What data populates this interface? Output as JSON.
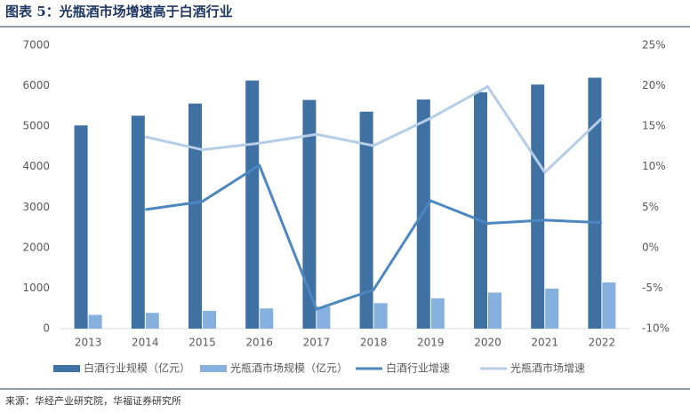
{
  "chart_data": {
    "type": "bar",
    "title": "图表 5：光瓶酒市场增速高于白酒行业",
    "source": "来源：华经产业研究院，华福证券研究所",
    "categories": [
      "2013",
      "2014",
      "2015",
      "2016",
      "2017",
      "2018",
      "2019",
      "2020",
      "2021",
      "2022"
    ],
    "series": [
      {
        "name": "白酒行业规模（亿元）",
        "type": "bar",
        "color": "#3f71a3",
        "values": [
          5020,
          5260,
          5560,
          6130,
          5650,
          5360,
          5660,
          5840,
          6030,
          6200
        ]
      },
      {
        "name": "光瓶酒市场规模（亿元）",
        "type": "bar",
        "color": "#86b0dd",
        "values": [
          340,
          390,
          440,
          500,
          540,
          630,
          750,
          890,
          990,
          1140
        ]
      },
      {
        "name": "白酒行业增速",
        "type": "line",
        "axis": "y2",
        "color": "#4c87c2",
        "values": [
          null,
          4.7,
          5.7,
          10.2,
          -7.6,
          -5.2,
          5.8,
          3.0,
          3.4,
          3.1
        ]
      },
      {
        "name": "光瓶酒市场增速",
        "type": "line",
        "axis": "y2",
        "color": "#b6cde8",
        "values": [
          null,
          13.7,
          12.1,
          12.9,
          14.0,
          12.6,
          16.0,
          19.9,
          9.3,
          16.0
        ]
      }
    ],
    "ylim": [
      0,
      7000
    ],
    "yticks": [
      0,
      1000,
      2000,
      3000,
      4000,
      5000,
      6000,
      7000
    ],
    "y2lim": [
      -10,
      25
    ],
    "y2ticks": [
      {
        "value": -10,
        "label": "-10%"
      },
      {
        "value": -5,
        "label": "-5%"
      },
      {
        "value": 0,
        "label": "0%"
      },
      {
        "value": 5,
        "label": "5%"
      },
      {
        "value": 10,
        "label": "10%"
      },
      {
        "value": 15,
        "label": "15%"
      },
      {
        "value": 20,
        "label": "20%"
      },
      {
        "value": 25,
        "label": "25%"
      }
    ]
  }
}
